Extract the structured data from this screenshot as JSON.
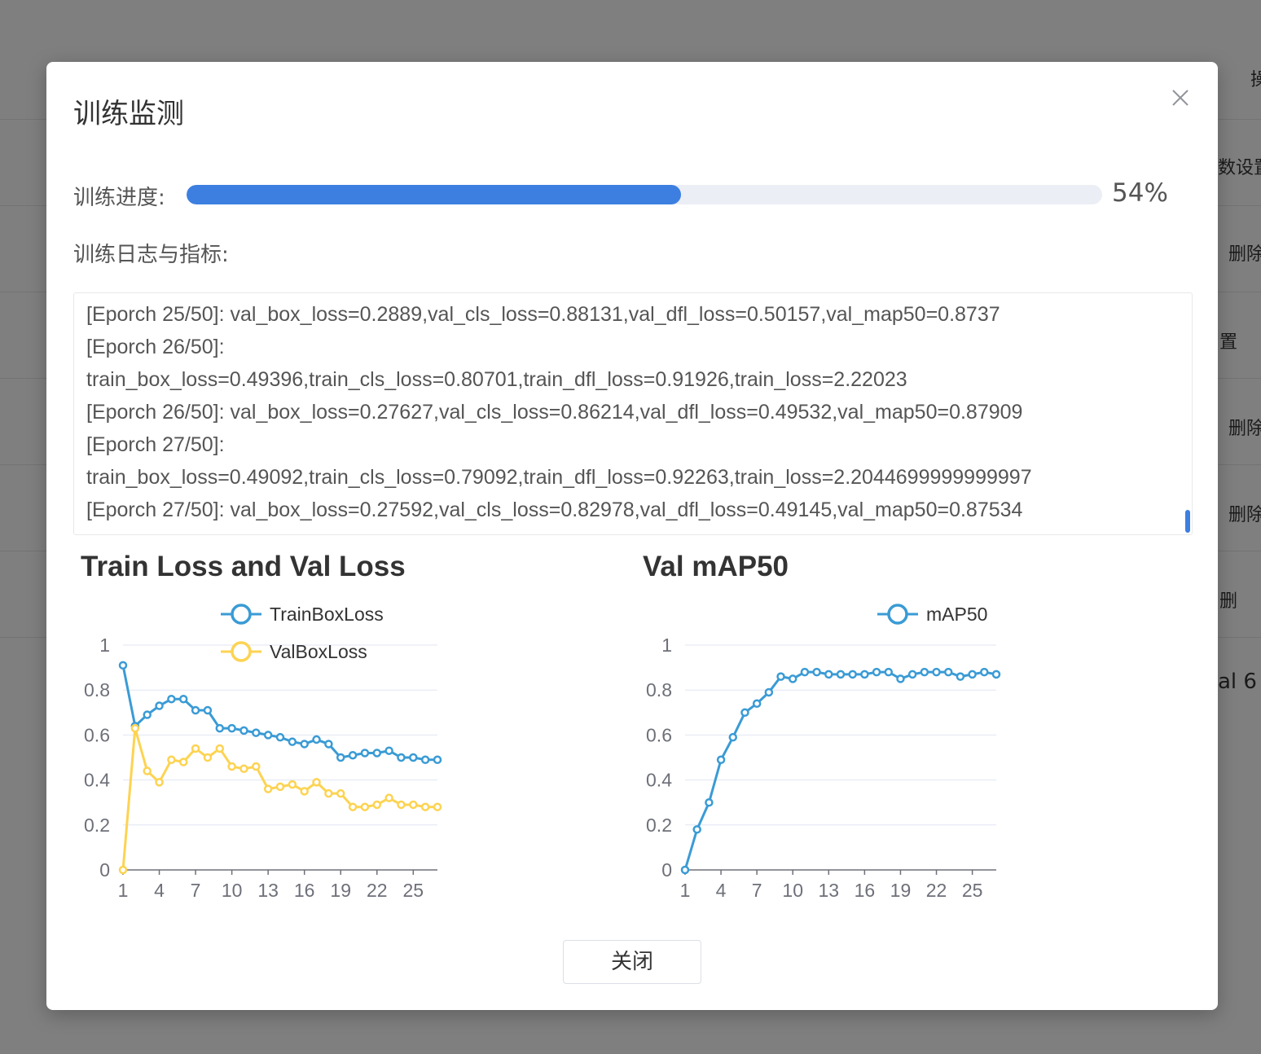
{
  "background": {
    "texts": [
      "操",
      "数设置",
      "删除",
      "置",
      "删除",
      "删除",
      "删",
      "al 6"
    ]
  },
  "modal": {
    "title": "训练监测",
    "close_icon": "close-icon",
    "close_button_label": "关闭"
  },
  "progress": {
    "label": "训练进度:",
    "percent": 54,
    "text": "54%"
  },
  "log": {
    "label": "训练日志与指标:",
    "lines": [
      "[Eporch 25/50]: val_box_loss=0.2889,val_cls_loss=0.88131,val_dfl_loss=0.50157,val_map50=0.8737",
      "[Eporch 26/50]:",
      "train_box_loss=0.49396,train_cls_loss=0.80701,train_dfl_loss=0.91926,train_loss=2.22023",
      "[Eporch 26/50]: val_box_loss=0.27627,val_cls_loss=0.86214,val_dfl_loss=0.49532,val_map50=0.87909",
      "[Eporch 27/50]:",
      "train_box_loss=0.49092,train_cls_loss=0.79092,train_dfl_loss=0.92263,train_loss=2.2044699999999997",
      "[Eporch 27/50]: val_box_loss=0.27592,val_cls_loss=0.82978,val_dfl_loss=0.49145,val_map50=0.87534"
    ]
  },
  "colors": {
    "accent": "#3c7fe0",
    "train_series": "#3a9bd5",
    "val_series": "#fdd352",
    "grid": "#e0e6f1"
  },
  "chart_data": [
    {
      "type": "line",
      "title": "Train Loss and Val Loss",
      "x": [
        1,
        2,
        3,
        4,
        5,
        6,
        7,
        8,
        9,
        10,
        11,
        12,
        13,
        14,
        15,
        16,
        17,
        18,
        19,
        20,
        21,
        22,
        23,
        24,
        25,
        26,
        27
      ],
      "xticks": [
        1,
        4,
        7,
        10,
        13,
        16,
        19,
        22,
        25
      ],
      "ylim": [
        0,
        1
      ],
      "yticks": [
        0,
        0.2,
        0.4,
        0.6,
        0.8,
        1
      ],
      "grid": true,
      "legend": "top",
      "series": [
        {
          "name": "TrainBoxLoss",
          "color": "#3a9bd5",
          "values": [
            0.91,
            0.64,
            0.69,
            0.73,
            0.76,
            0.76,
            0.71,
            0.71,
            0.63,
            0.63,
            0.62,
            0.61,
            0.6,
            0.59,
            0.57,
            0.56,
            0.58,
            0.56,
            0.5,
            0.51,
            0.52,
            0.52,
            0.53,
            0.5,
            0.5,
            0.49,
            0.49
          ]
        },
        {
          "name": "ValBoxLoss",
          "color": "#fdd352",
          "values": [
            0.0,
            0.63,
            0.44,
            0.39,
            0.49,
            0.48,
            0.54,
            0.5,
            0.54,
            0.46,
            0.45,
            0.46,
            0.36,
            0.37,
            0.38,
            0.35,
            0.39,
            0.34,
            0.34,
            0.28,
            0.28,
            0.29,
            0.32,
            0.29,
            0.29,
            0.28,
            0.28
          ]
        }
      ]
    },
    {
      "type": "line",
      "title": "Val mAP50",
      "x": [
        1,
        2,
        3,
        4,
        5,
        6,
        7,
        8,
        9,
        10,
        11,
        12,
        13,
        14,
        15,
        16,
        17,
        18,
        19,
        20,
        21,
        22,
        23,
        24,
        25,
        26,
        27
      ],
      "xticks": [
        1,
        4,
        7,
        10,
        13,
        16,
        19,
        22,
        25
      ],
      "ylim": [
        0,
        1
      ],
      "yticks": [
        0,
        0.2,
        0.4,
        0.6,
        0.8,
        1
      ],
      "grid": true,
      "legend": "top-right",
      "series": [
        {
          "name": "mAP50",
          "color": "#3a9bd5",
          "values": [
            0.0,
            0.18,
            0.3,
            0.49,
            0.59,
            0.7,
            0.74,
            0.79,
            0.86,
            0.85,
            0.88,
            0.88,
            0.87,
            0.87,
            0.87,
            0.87,
            0.88,
            0.88,
            0.85,
            0.87,
            0.88,
            0.88,
            0.88,
            0.86,
            0.87,
            0.88,
            0.87
          ]
        }
      ]
    }
  ]
}
